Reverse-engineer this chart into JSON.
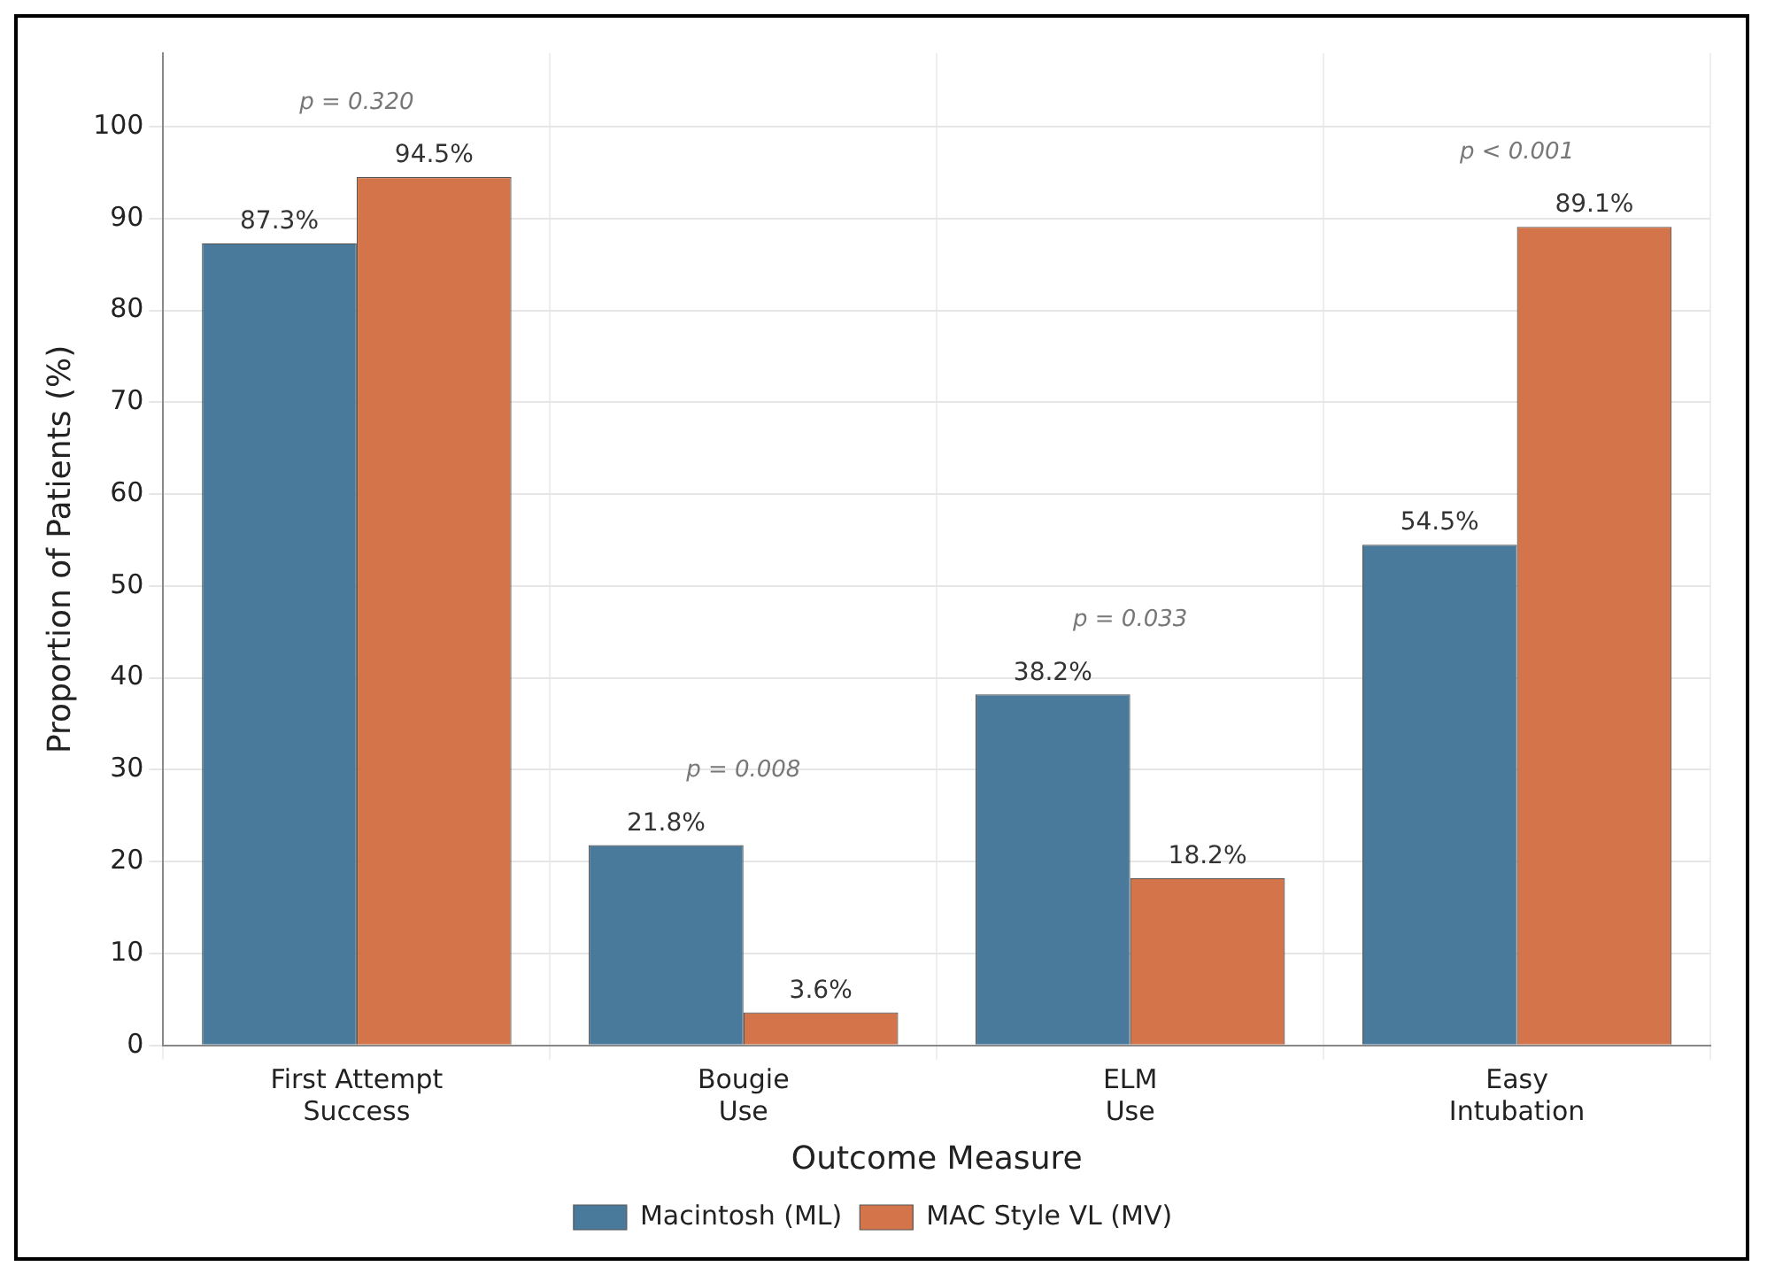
{
  "chart_data": {
    "type": "bar",
    "xlabel": "Outcome Measure",
    "ylabel": "Proportion of Patients (%)",
    "categories": [
      "First Attempt\nSuccess",
      "Bougie\nUse",
      "ELM\nUse",
      "Easy\nIntubation"
    ],
    "series": [
      {
        "name": "Macintosh (ML)",
        "color": "#4a7a9b",
        "values": [
          87.3,
          21.8,
          38.2,
          54.5
        ],
        "value_labels": [
          "87.3%",
          "21.8%",
          "38.2%",
          "54.5%"
        ]
      },
      {
        "name": "MAC Style VL (MV)",
        "color": "#d4744a",
        "values": [
          94.5,
          3.6,
          18.2,
          89.1
        ],
        "value_labels": [
          "94.5%",
          "3.6%",
          "18.2%",
          "89.1%"
        ]
      }
    ],
    "ylim": [
      0,
      108
    ],
    "yticks": [
      0,
      10,
      20,
      30,
      40,
      50,
      60,
      70,
      80,
      90,
      100
    ],
    "annotations": [
      "p = 0.320",
      "p = 0.008",
      "p = 0.033",
      "p < 0.001"
    ],
    "grid": true,
    "legend": "bottom"
  }
}
